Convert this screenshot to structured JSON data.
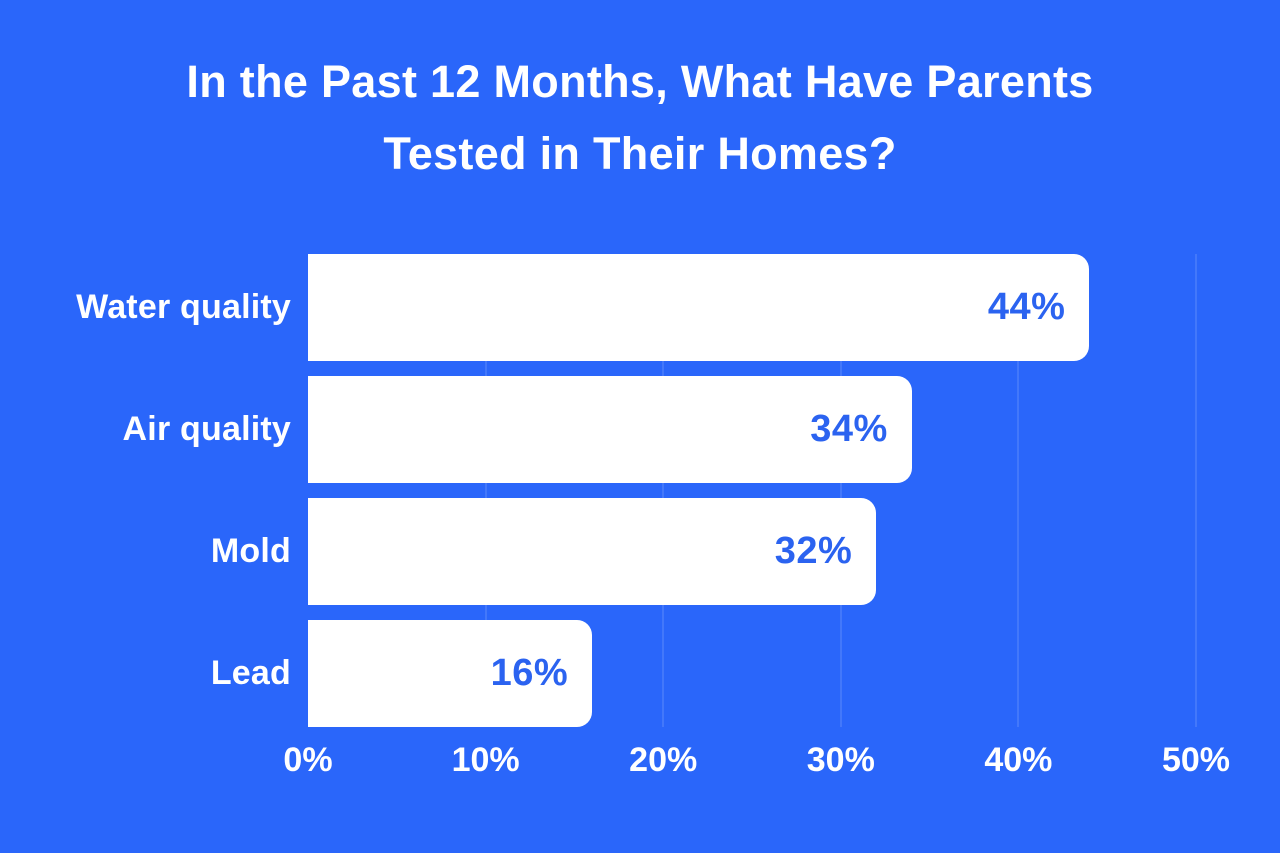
{
  "title": {
    "line1": "In the Past 12 Months, What Have Parents",
    "line2": "Tested in Their Homes?"
  },
  "chart_data": {
    "type": "bar",
    "orientation": "horizontal",
    "title": "In the Past 12 Months, What Have Parents Tested in Their Homes?",
    "categories": [
      "Water quality",
      "Air quality",
      "Mold",
      "Lead"
    ],
    "values": [
      44,
      34,
      32,
      16
    ],
    "value_labels": [
      "44%",
      "34%",
      "32%",
      "16%"
    ],
    "xlabel": "",
    "ylabel": "",
    "xlim": [
      0,
      50
    ],
    "x_ticks": [
      0,
      10,
      20,
      30,
      40,
      50
    ],
    "x_tick_labels": [
      "0%",
      "10%",
      "20%",
      "30%",
      "40%",
      "50%"
    ],
    "grid": "vertical gridlines every 10%, drawn behind bars",
    "legend_position": "none",
    "colors": {
      "background": "#2a66fa",
      "bar_fill": "#ffffff",
      "value_text": "#2b63f0",
      "label_text": "#ffffff",
      "gridline": "rgba(255,255,255,0.12)"
    }
  }
}
